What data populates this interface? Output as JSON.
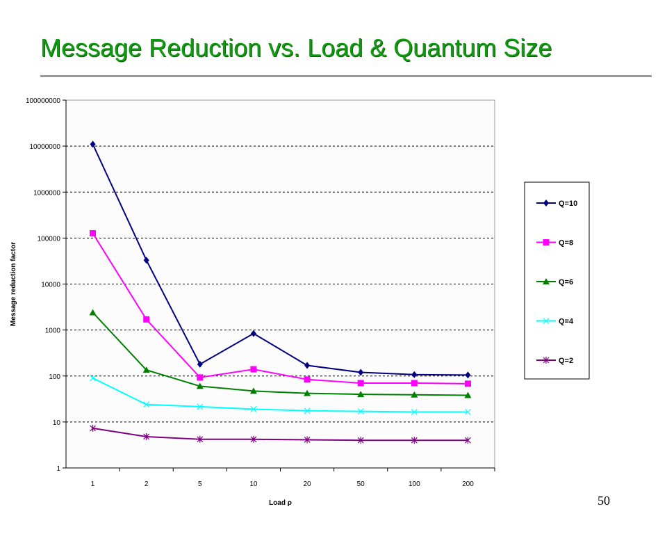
{
  "slide": {
    "title": "Message Reduction vs. Load & Quantum Size",
    "page_number": "50"
  },
  "chart_data": {
    "type": "line",
    "title": "",
    "xlabel": "Load ρ",
    "ylabel": "Message reduction factor",
    "yscale": "log",
    "ylim": [
      1,
      100000000
    ],
    "yticks": [
      "1",
      "10",
      "100",
      "1000",
      "10000",
      "100000",
      "1000000",
      "10000000",
      "100000000"
    ],
    "categories": [
      "1",
      "2",
      "5",
      "10",
      "20",
      "50",
      "100",
      "200"
    ],
    "grid": true,
    "legend": "right",
    "series": [
      {
        "name": "Q=10",
        "color": "#000080",
        "marker": "diamond",
        "values": [
          11000000,
          33000,
          180,
          840,
          170,
          120,
          107,
          105
        ]
      },
      {
        "name": "Q=8",
        "color": "#ff00ff",
        "marker": "square",
        "values": [
          127000,
          1700,
          93,
          140,
          84,
          70,
          70,
          68
        ]
      },
      {
        "name": "Q=6",
        "color": "#008000",
        "marker": "triangle",
        "values": [
          2400,
          135,
          60,
          47,
          42,
          40,
          39,
          38
        ]
      },
      {
        "name": "Q=4",
        "color": "#00ffff",
        "marker": "x",
        "values": [
          90,
          24,
          21.5,
          19,
          17.5,
          17,
          16.5,
          16.5
        ]
      },
      {
        "name": "Q=2",
        "color": "#800080",
        "marker": "star",
        "values": [
          7.3,
          4.8,
          4.2,
          4.2,
          4.1,
          4.0,
          4.0,
          4.0
        ]
      }
    ]
  }
}
